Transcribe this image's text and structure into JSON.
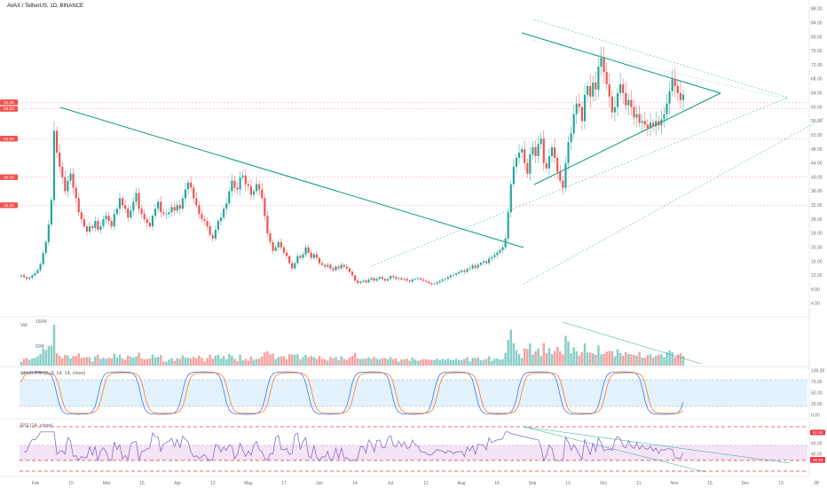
{
  "chart_data": {
    "type": "candlestick",
    "title": "AVAX / TetherUS, 1D, BINANCE",
    "price_axis": {
      "ticks": [
        "88.00",
        "84.00",
        "80.00",
        "76.00",
        "72.00",
        "68.00",
        "64.00",
        "60.00",
        "56.00",
        "52.00",
        "48.00",
        "44.00",
        "40.00",
        "36.00",
        "32.00",
        "28.00",
        "24.00",
        "20.00",
        "16.00",
        "12.00",
        "8.00",
        "4.00"
      ],
      "ylim": [
        0,
        90
      ]
    },
    "price_badges": [
      {
        "label": "61.35",
        "value": 61.35,
        "color": "#ef5350"
      },
      {
        "label": "59.50",
        "value": 59.5,
        "color": "#ef5350"
      },
      {
        "label": "51.00",
        "value": 51.0,
        "color": "#ef5350"
      },
      {
        "label": "40.00",
        "value": 40.0,
        "color": "#ef5350"
      },
      {
        "label": "32.00",
        "value": 32.0,
        "color": "#ef5350"
      }
    ],
    "time_axis": {
      "labels": [
        "Feb",
        "15",
        "Mar",
        "15",
        "Apr",
        "12",
        "May",
        "17",
        "Jun",
        "14",
        "Jul",
        "12",
        "Aug",
        "16",
        "Sep",
        "13",
        "Oct",
        "11",
        "Nov",
        "15",
        "Dec",
        "13",
        "28"
      ]
    },
    "closes": [
      12.0,
      11.5,
      11.0,
      11.3,
      12.0,
      12.6,
      13.5,
      15.2,
      18.4,
      21.5,
      26.5,
      33.5,
      53.2,
      47.0,
      43.0,
      40.0,
      36.0,
      39.0,
      41.0,
      37.0,
      34.0,
      30.0,
      28.0,
      26.0,
      24.5,
      26.0,
      25.5,
      27.5,
      25.0,
      26.0,
      28.0,
      29.0,
      27.5,
      26.0,
      29.5,
      31.0,
      34.0,
      32.0,
      31.0,
      28.5,
      30.5,
      33.0,
      35.5,
      31.0,
      29.5,
      28.0,
      27.0,
      26.0,
      29.0,
      31.0,
      33.0,
      30.0,
      29.5,
      29.5,
      30.0,
      31.5,
      30.5,
      32.0,
      31.0,
      34.0,
      36.5,
      38.5,
      37.0,
      34.0,
      32.0,
      29.5,
      28.0,
      27.5,
      26.0,
      23.5,
      22.5,
      25.0,
      27.5,
      28.5,
      31.0,
      32.5,
      36.0,
      39.0,
      37.0,
      36.5,
      40.0,
      40.5,
      38.0,
      37.5,
      35.0,
      36.0,
      38.0,
      36.5,
      34.0,
      29.0,
      24.0,
      21.5,
      19.0,
      20.0,
      21.5,
      20.0,
      18.5,
      17.5,
      15.5,
      14.0,
      15.5,
      17.5,
      17.0,
      18.0,
      20.0,
      18.5,
      17.0,
      18.0,
      17.0,
      15.5,
      15.0,
      14.5,
      15.0,
      14.0,
      13.5,
      14.5,
      14.0,
      15.0,
      14.5,
      14.0,
      13.0,
      12.0,
      10.5,
      9.8,
      10.2,
      10.5,
      10.0,
      10.8,
      11.2,
      10.5,
      11.0,
      11.5,
      11.0,
      10.5,
      11.0,
      11.8,
      11.5,
      11.0,
      11.2,
      10.8,
      11.0,
      10.5,
      10.2,
      10.8,
      11.0,
      11.2,
      10.8,
      10.5,
      10.2,
      9.8,
      9.5,
      9.6,
      10.0,
      10.4,
      10.8,
      11.0,
      11.5,
      12.0,
      12.2,
      12.6,
      13.0,
      13.4,
      13.0,
      13.8,
      14.0,
      14.8,
      14.2,
      15.0,
      15.6,
      16.0,
      15.5,
      16.8,
      17.2,
      17.8,
      18.5,
      19.2,
      20.0,
      22.5,
      30.0,
      38.0,
      43.0,
      45.5,
      47.0,
      48.0,
      44.0,
      41.0,
      46.5,
      48.5,
      46.0,
      49.5,
      51.0,
      44.0,
      42.5,
      46.0,
      48.5,
      45.5,
      41.5,
      39.0,
      37.0,
      44.0,
      50.0,
      52.5,
      58.0,
      61.0,
      60.0,
      56.0,
      63.5,
      66.0,
      63.0,
      67.0,
      65.0,
      71.5,
      74.0,
      70.0,
      66.5,
      63.0,
      58.5,
      60.0,
      64.0,
      66.5,
      64.0,
      60.5,
      62.0,
      60.0,
      57.0,
      58.0,
      55.5,
      56.0,
      55.0,
      54.0,
      55.5,
      54.5,
      56.0,
      54.8,
      56.5,
      58.0,
      61.0,
      64.5,
      68.0,
      66.0,
      64.0,
      62.0,
      63.5
    ],
    "volume_label": "Vol",
    "volume_ticks": [
      "150M",
      "50M"
    ],
    "stoch_rsi": {
      "label": "Stoch RSI (3, 3, 14, 14, close)",
      "ticks": [
        "100.00",
        "75.00",
        "50.00",
        "25.00",
        "0.00"
      ],
      "bands": [
        80,
        20
      ]
    },
    "rsi": {
      "label": "RSI (14, close)",
      "ticks": [
        "60.00",
        "40.00"
      ],
      "badges": [
        {
          "label": "81.00",
          "value": 81.0
        },
        {
          "label": "30.00",
          "value": 30.0
        },
        {
          "label": "28.99",
          "value": 28.99
        }
      ],
      "bands": [
        70,
        30
      ]
    },
    "grid": false
  }
}
